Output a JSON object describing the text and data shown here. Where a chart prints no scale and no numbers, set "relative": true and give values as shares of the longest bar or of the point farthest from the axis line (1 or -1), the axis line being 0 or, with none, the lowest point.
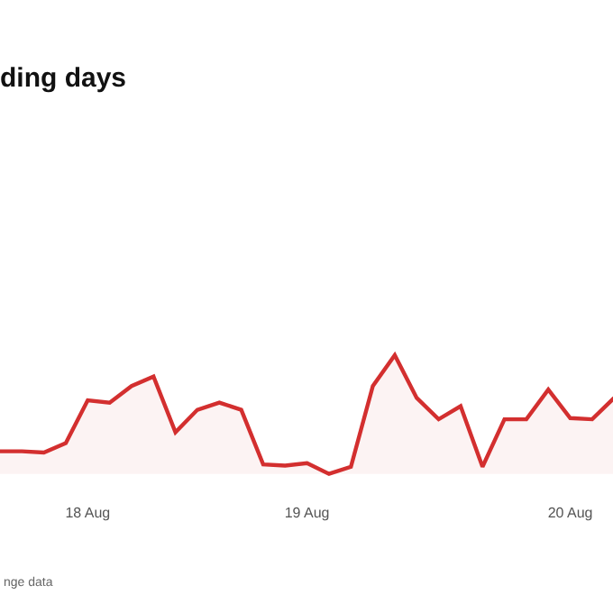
{
  "chart_data": {
    "type": "area",
    "title": "ding days",
    "relative": true,
    "annotations": [
      "nge data"
    ],
    "categories": [
      null,
      null,
      null,
      null,
      "18 Aug",
      null,
      null,
      null,
      null,
      null,
      null,
      null,
      null,
      null,
      "19 Aug",
      null,
      null,
      null,
      null,
      null,
      null,
      null,
      null,
      null,
      null,
      null,
      "20 Aug",
      null,
      null
    ],
    "series": [
      {
        "color": "#d32f2f",
        "values": [
          0.19,
          0.19,
          0.18,
          0.26,
          0.62,
          0.6,
          0.74,
          0.82,
          0.35,
          0.54,
          0.6,
          0.54,
          0.08,
          0.07,
          0.09,
          0,
          0.06,
          0.74,
          1,
          0.64,
          0.46,
          0.57,
          0.06,
          0.46,
          0.46,
          0.71,
          0.47,
          0.46,
          0.64
        ]
      }
    ]
  }
}
